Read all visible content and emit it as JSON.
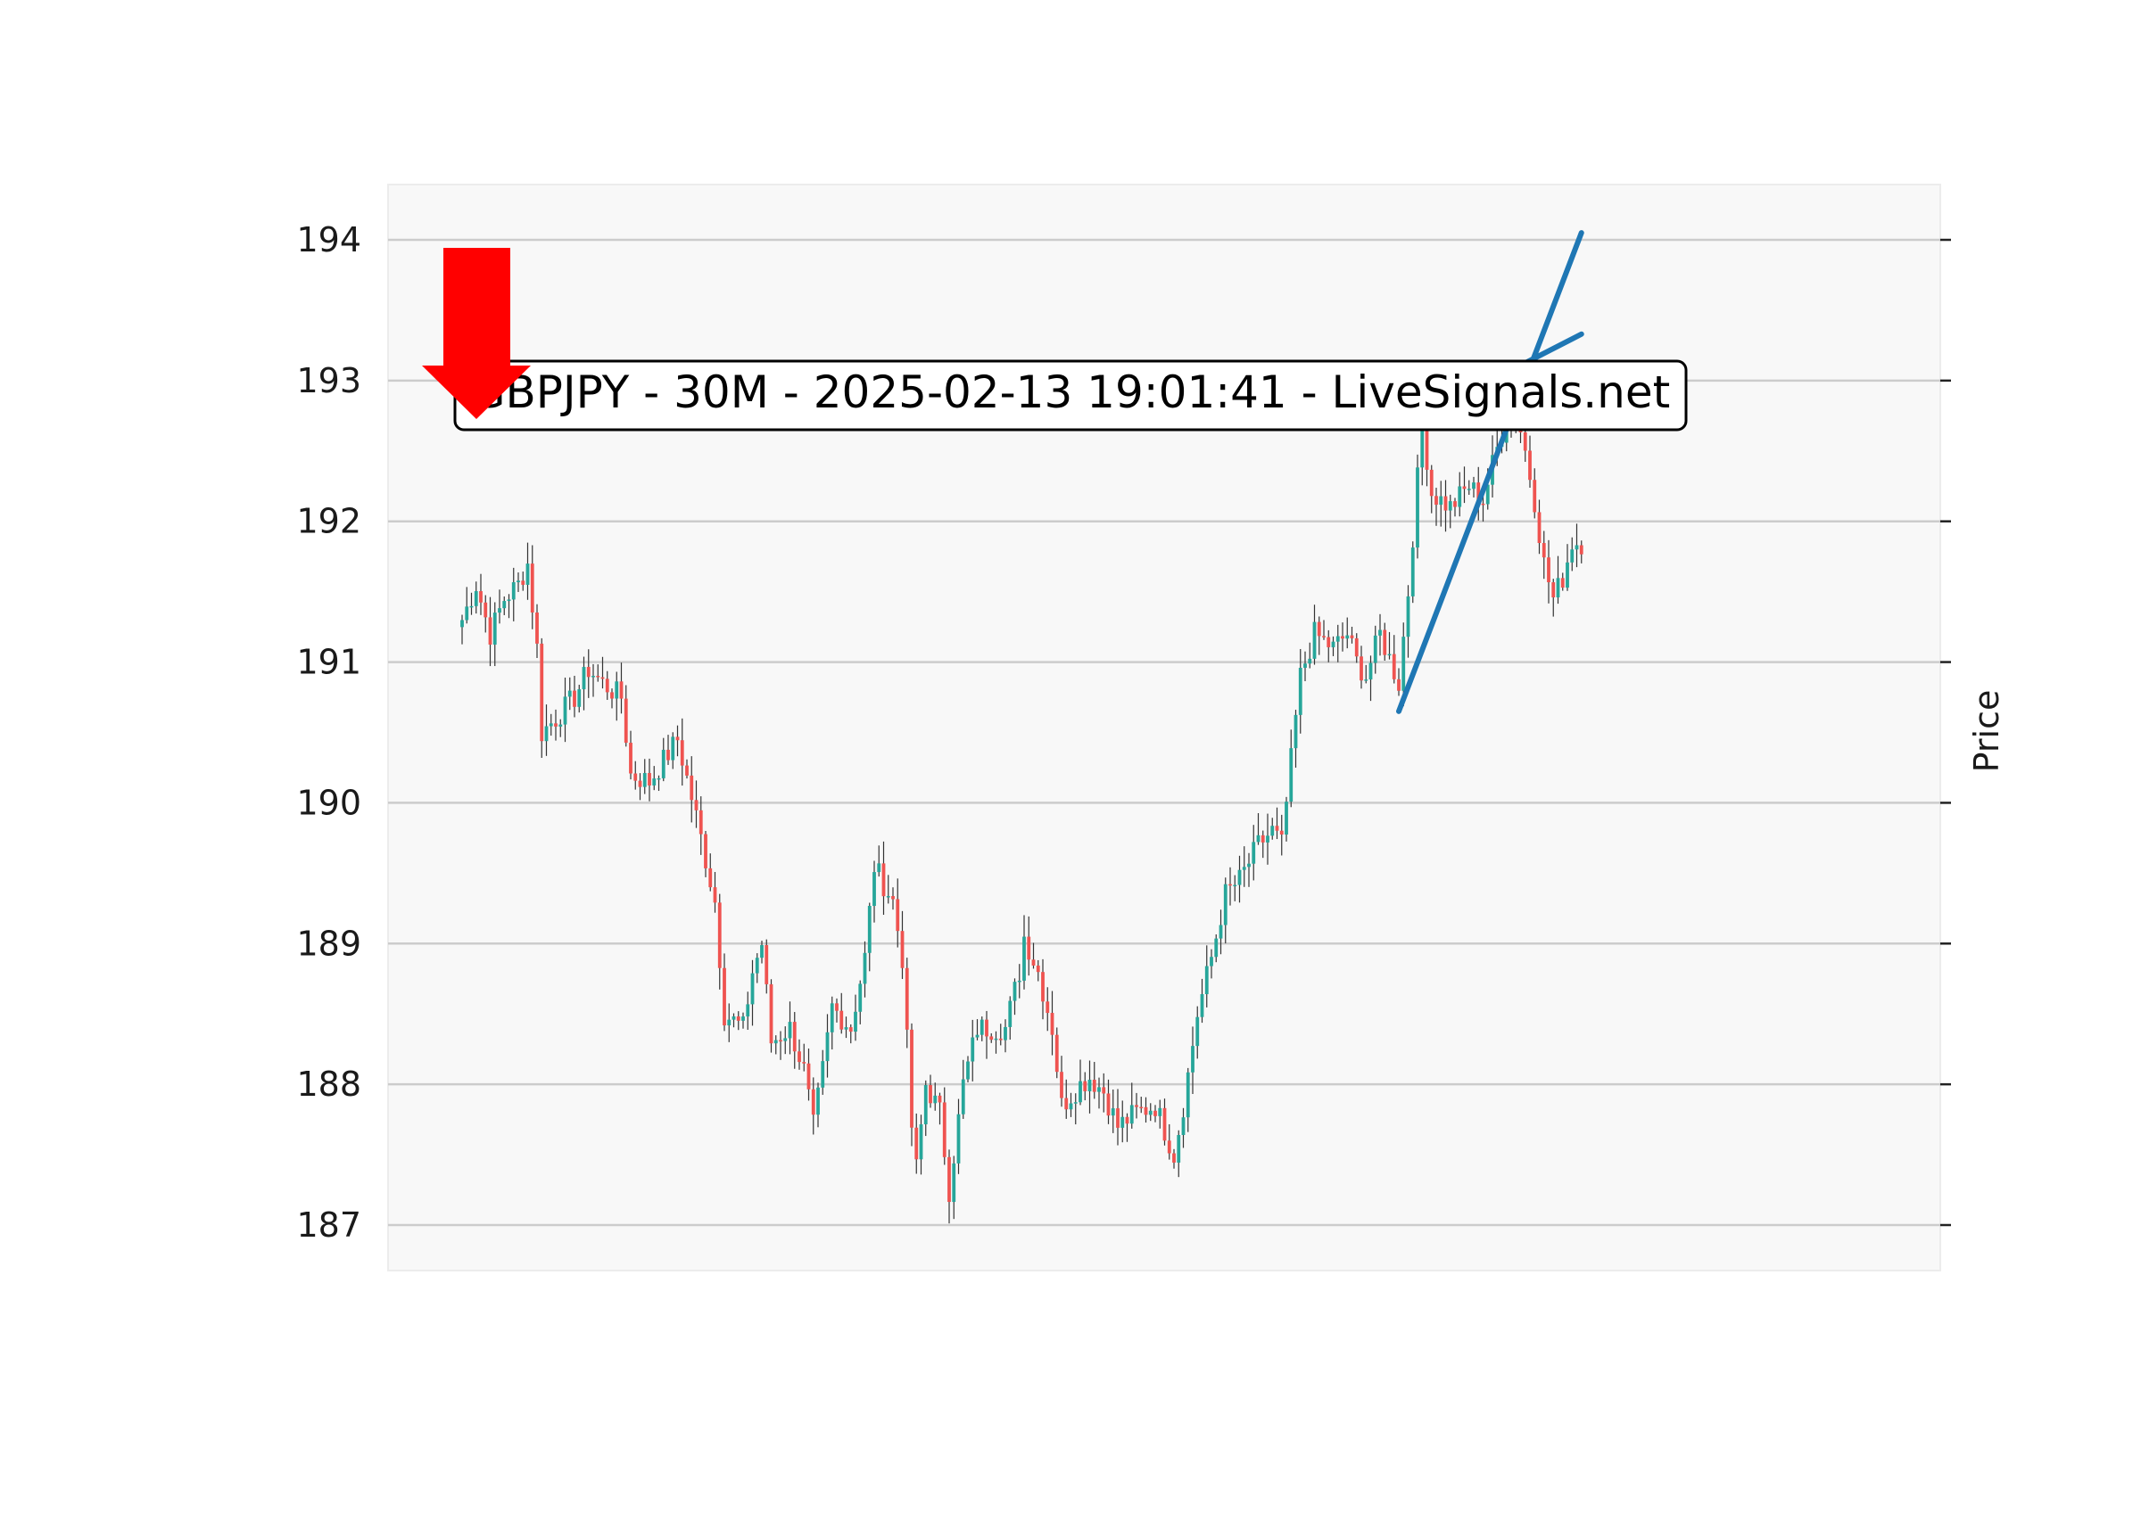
{
  "chart_data": {
    "type": "candlestick",
    "title": "GBPJPY - 30M - 2025-02-13 19:01:41 - LiveSignals.net",
    "ylabel": "Price",
    "ylim": [
      186.7,
      194.4
    ],
    "yticks": [
      "194",
      "193",
      "192",
      "191",
      "190",
      "189",
      "188",
      "187"
    ],
    "ytick_values": [
      194,
      193,
      192,
      191,
      190,
      189,
      188,
      187
    ],
    "grid": "horizontal",
    "y_axis_side": "right",
    "signal": "sell",
    "colors": {
      "up": "#26a69a",
      "down": "#ef5350",
      "wick": "#333333",
      "trendline": "#1f77b4",
      "arrow": "#ff0000",
      "plot_bg": "#f8f8f8",
      "grid": "#cccccc"
    },
    "anchors": [
      [
        0,
        191.3
      ],
      [
        3,
        191.55
      ],
      [
        6,
        191.2
      ],
      [
        9,
        191.45
      ],
      [
        12,
        191.55
      ],
      [
        14,
        191.7
      ],
      [
        16,
        191.1
      ],
      [
        17,
        190.5
      ],
      [
        20,
        190.6
      ],
      [
        24,
        190.75
      ],
      [
        27,
        190.95
      ],
      [
        30,
        190.85
      ],
      [
        34,
        190.75
      ],
      [
        36,
        190.2
      ],
      [
        40,
        190.15
      ],
      [
        44,
        190.35
      ],
      [
        46,
        190.45
      ],
      [
        50,
        189.9
      ],
      [
        54,
        189.3
      ],
      [
        56,
        188.5
      ],
      [
        60,
        188.4
      ],
      [
        62,
        188.8
      ],
      [
        64,
        189.0
      ],
      [
        66,
        188.3
      ],
      [
        70,
        188.4
      ],
      [
        73,
        188.1
      ],
      [
        75,
        187.7
      ],
      [
        77,
        188.1
      ],
      [
        79,
        188.55
      ],
      [
        83,
        188.4
      ],
      [
        86,
        188.9
      ],
      [
        88,
        189.55
      ],
      [
        92,
        189.3
      ],
      [
        94,
        188.9
      ],
      [
        96,
        187.7
      ],
      [
        97,
        187.4
      ],
      [
        99,
        188.0
      ],
      [
        102,
        187.8
      ],
      [
        104,
        187.25
      ],
      [
        107,
        188.0
      ],
      [
        110,
        188.4
      ],
      [
        116,
        188.4
      ],
      [
        119,
        188.8
      ],
      [
        120,
        189.05
      ],
      [
        123,
        188.8
      ],
      [
        126,
        188.4
      ],
      [
        128,
        187.85
      ],
      [
        132,
        188.0
      ],
      [
        134,
        188.05
      ],
      [
        137,
        187.95
      ],
      [
        140,
        187.7
      ],
      [
        144,
        187.8
      ],
      [
        148,
        187.85
      ],
      [
        152,
        187.5
      ],
      [
        154,
        187.85
      ],
      [
        157,
        188.5
      ],
      [
        160,
        188.9
      ],
      [
        163,
        189.35
      ],
      [
        166,
        189.45
      ],
      [
        170,
        189.7
      ],
      [
        173,
        189.8
      ],
      [
        175,
        189.7
      ],
      [
        177,
        190.3
      ],
      [
        179,
        190.9
      ],
      [
        182,
        191.2
      ],
      [
        186,
        191.1
      ],
      [
        189,
        191.2
      ],
      [
        191,
        191.0
      ],
      [
        193,
        190.9
      ],
      [
        196,
        191.2
      ],
      [
        200,
        190.85
      ],
      [
        202,
        191.5
      ],
      [
        204,
        192.3
      ],
      [
        205,
        192.7
      ],
      [
        207,
        192.2
      ],
      [
        211,
        192.1
      ],
      [
        215,
        192.25
      ],
      [
        218,
        192.15
      ],
      [
        220,
        192.4
      ],
      [
        223,
        192.75
      ],
      [
        225,
        192.8
      ],
      [
        227,
        192.5
      ],
      [
        229,
        192.15
      ],
      [
        231,
        191.7
      ],
      [
        233,
        191.45
      ],
      [
        235,
        191.6
      ],
      [
        237,
        191.85
      ],
      [
        239,
        191.85
      ]
    ],
    "trendlines": [
      {
        "name": "",
        "from": [
          205,
          192.75
        ],
        "to": [
          239,
          193.33
        ]
      },
      {
        "name": "",
        "from": [
          200,
          190.65
        ],
        "to": [
          239,
          194.05
        ]
      }
    ]
  }
}
